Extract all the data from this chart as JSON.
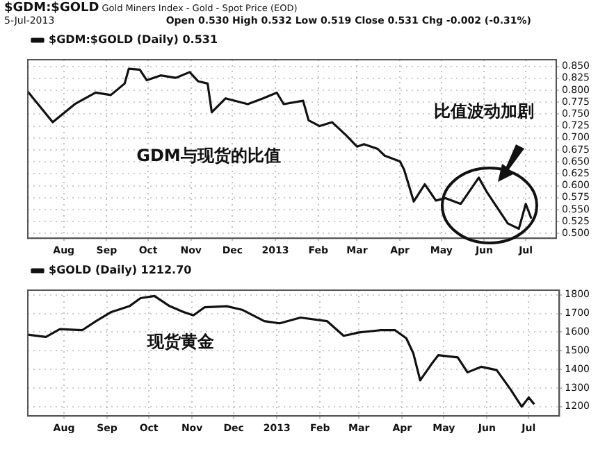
{
  "chart_data": [
    {
      "type": "line",
      "title": "$GDM:$GOLD",
      "subtitle": "Gold Miners Index - Gold - Spot Price (EOD)",
      "annotations": [
        "5-Jul-2013",
        "Open 0.530 High 0.532 Low 0.519 Close 0.531 Chg -0.002 (-0.31%)",
        "GDM与现货的比值",
        "比值波动加剧"
      ],
      "x": [
        "2012-07-06",
        "2012-07-24",
        "2012-08-09",
        "2012-08-24",
        "2012-09-04",
        "2012-09-14",
        "2012-09-17",
        "2012-09-25",
        "2012-09-30",
        "2012-10-10",
        "2012-10-21",
        "2012-10-31",
        "2012-11-06",
        "2012-11-13",
        "2012-11-16",
        "2012-11-26",
        "2012-12-12",
        "2012-12-23",
        "2013-01-02",
        "2013-01-07",
        "2013-01-21",
        "2013-01-25",
        "2013-02-02",
        "2013-02-11",
        "2013-02-21",
        "2013-03-01",
        "2013-03-06",
        "2013-03-16",
        "2013-03-21",
        "2013-04-01",
        "2013-04-04",
        "2013-04-11",
        "2013-04-19",
        "2013-04-27",
        "2013-05-04",
        "2013-05-15",
        "2013-05-28",
        "2013-06-03",
        "2013-06-18",
        "2013-06-26",
        "2013-07-01",
        "2013-07-05"
      ],
      "series": [
        {
          "name": "$GDM:$GOLD (Daily) 0.531",
          "color": "#111111",
          "values": [
            0.797,
            0.733,
            0.771,
            0.795,
            0.79,
            0.814,
            0.845,
            0.843,
            0.821,
            0.831,
            0.826,
            0.838,
            0.819,
            0.814,
            0.754,
            0.783,
            0.771,
            0.783,
            0.795,
            0.771,
            0.778,
            0.737,
            0.725,
            0.733,
            0.706,
            0.682,
            0.687,
            0.677,
            0.663,
            0.651,
            0.634,
            0.567,
            0.603,
            0.569,
            0.574,
            0.562,
            0.617,
            0.586,
            0.521,
            0.51,
            0.562,
            0.531
          ]
        }
      ],
      "xlim": [
        "2012-07-06",
        "2013-07-23"
      ],
      "xticks": [
        {
          "value": "2012-08-01",
          "label": "Aug"
        },
        {
          "value": "2012-09-01",
          "label": "Sep"
        },
        {
          "value": "2012-10-01",
          "label": "Oct"
        },
        {
          "value": "2012-11-01",
          "label": "Nov"
        },
        {
          "value": "2012-12-01",
          "label": "Dec"
        },
        {
          "value": "2013-01-01",
          "label": "2013"
        },
        {
          "value": "2013-02-01",
          "label": "Feb"
        },
        {
          "value": "2013-03-01",
          "label": "Mar"
        },
        {
          "value": "2013-04-01",
          "label": "Apr"
        },
        {
          "value": "2013-05-01",
          "label": "May"
        },
        {
          "value": "2013-06-01",
          "label": "Jun"
        },
        {
          "value": "2013-07-01",
          "label": "Jul"
        }
      ],
      "ylim": [
        0.49,
        0.864
      ],
      "yticks": [
        {
          "value": 0.5,
          "label": "0.500"
        },
        {
          "value": 0.525,
          "label": "0.525"
        },
        {
          "value": 0.55,
          "label": "0.550"
        },
        {
          "value": 0.575,
          "label": "0.575"
        },
        {
          "value": 0.6,
          "label": "0.600"
        },
        {
          "value": 0.625,
          "label": "0.625"
        },
        {
          "value": 0.65,
          "label": "0.650"
        },
        {
          "value": 0.675,
          "label": "0.675"
        },
        {
          "value": 0.7,
          "label": "0.700"
        },
        {
          "value": 0.725,
          "label": "0.725"
        },
        {
          "value": 0.75,
          "label": "0.750"
        },
        {
          "value": 0.775,
          "label": "0.775"
        },
        {
          "value": 0.8,
          "label": "0.800"
        },
        {
          "value": 0.825,
          "label": "0.825"
        },
        {
          "value": 0.85,
          "label": "0.850"
        }
      ],
      "grid": true,
      "legend": "top left",
      "marker": "none",
      "line_style": "solid"
    },
    {
      "type": "line",
      "annotations": [
        "现货黄金"
      ],
      "x": [
        "2012-07-06",
        "2012-07-19",
        "2012-07-29",
        "2012-08-14",
        "2012-08-24",
        "2012-09-04",
        "2012-09-17",
        "2012-09-25",
        "2012-10-05",
        "2012-10-16",
        "2012-10-26",
        "2012-11-02",
        "2012-11-10",
        "2012-11-26",
        "2012-12-07",
        "2012-12-23",
        "2013-01-03",
        "2013-01-18",
        "2013-02-06",
        "2013-02-18",
        "2013-03-01",
        "2013-03-16",
        "2013-03-27",
        "2013-04-04",
        "2013-04-09",
        "2013-04-14",
        "2013-04-22",
        "2013-04-27",
        "2013-05-11",
        "2013-05-18",
        "2013-05-28",
        "2013-06-08",
        "2013-06-18",
        "2013-06-26",
        "2013-07-01",
        "2013-07-05"
      ],
      "series": [
        {
          "name": "$GOLD (Daily) 1212.70",
          "color": "#111111",
          "values": [
            1586,
            1574,
            1616,
            1610,
            1659,
            1708,
            1739,
            1782,
            1794,
            1739,
            1708,
            1690,
            1733,
            1739,
            1720,
            1659,
            1647,
            1678,
            1659,
            1580,
            1598,
            1610,
            1610,
            1567,
            1488,
            1341,
            1427,
            1476,
            1464,
            1384,
            1414,
            1396,
            1292,
            1200,
            1249,
            1212.7
          ]
        }
      ],
      "xlim": [
        "2012-07-06",
        "2013-07-23"
      ],
      "xticks": [
        {
          "value": "2012-08-01",
          "label": "Aug"
        },
        {
          "value": "2012-09-01",
          "label": "Sep"
        },
        {
          "value": "2012-10-01",
          "label": "Oct"
        },
        {
          "value": "2012-11-01",
          "label": "Nov"
        },
        {
          "value": "2012-12-01",
          "label": "Dec"
        },
        {
          "value": "2013-01-01",
          "label": "2013"
        },
        {
          "value": "2013-02-01",
          "label": "Feb"
        },
        {
          "value": "2013-03-01",
          "label": "Mar"
        },
        {
          "value": "2013-04-01",
          "label": "Apr"
        },
        {
          "value": "2013-05-01",
          "label": "May"
        },
        {
          "value": "2013-06-01",
          "label": "Jun"
        },
        {
          "value": "2013-07-01",
          "label": "Jul"
        }
      ],
      "ylim": [
        1150,
        1825
      ],
      "yticks": [
        1200,
        1300,
        1400,
        1500,
        1600,
        1700,
        1800
      ],
      "grid": true,
      "legend": "top left",
      "marker": "none",
      "line_style": "solid"
    }
  ]
}
